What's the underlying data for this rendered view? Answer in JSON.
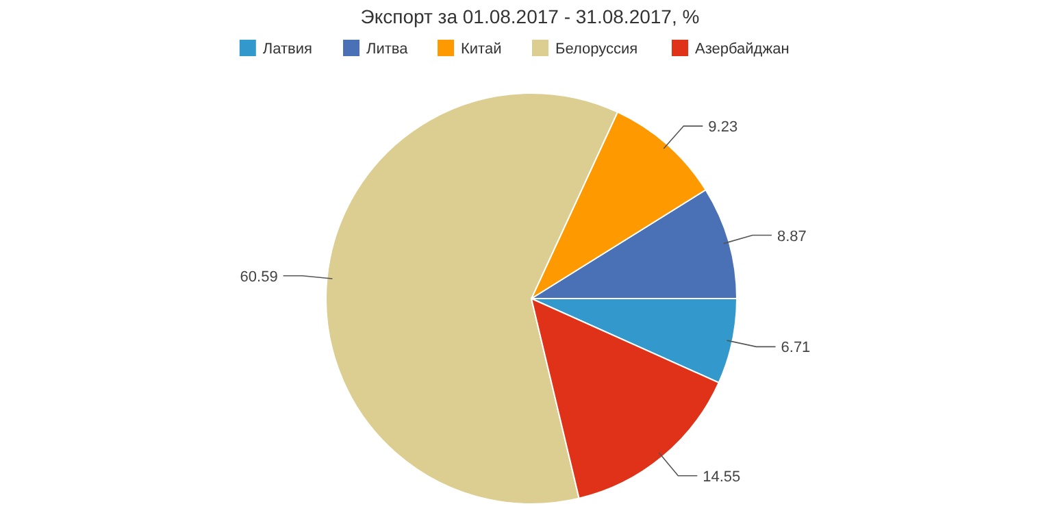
{
  "chart_data": {
    "type": "pie",
    "title": "Экспорт за 01.08.2017 - 31.08.2017, %",
    "categories": [
      "Латвия",
      "Литва",
      "Китай",
      "Белоруссия",
      "Азербайджан"
    ],
    "values": [
      6.71,
      8.87,
      9.23,
      60.59,
      14.55
    ],
    "colors": [
      "#3399cc",
      "#4a70b5",
      "#ff9900",
      "#dccd91",
      "#e03218"
    ],
    "data_labels": true,
    "legend": "top"
  }
}
